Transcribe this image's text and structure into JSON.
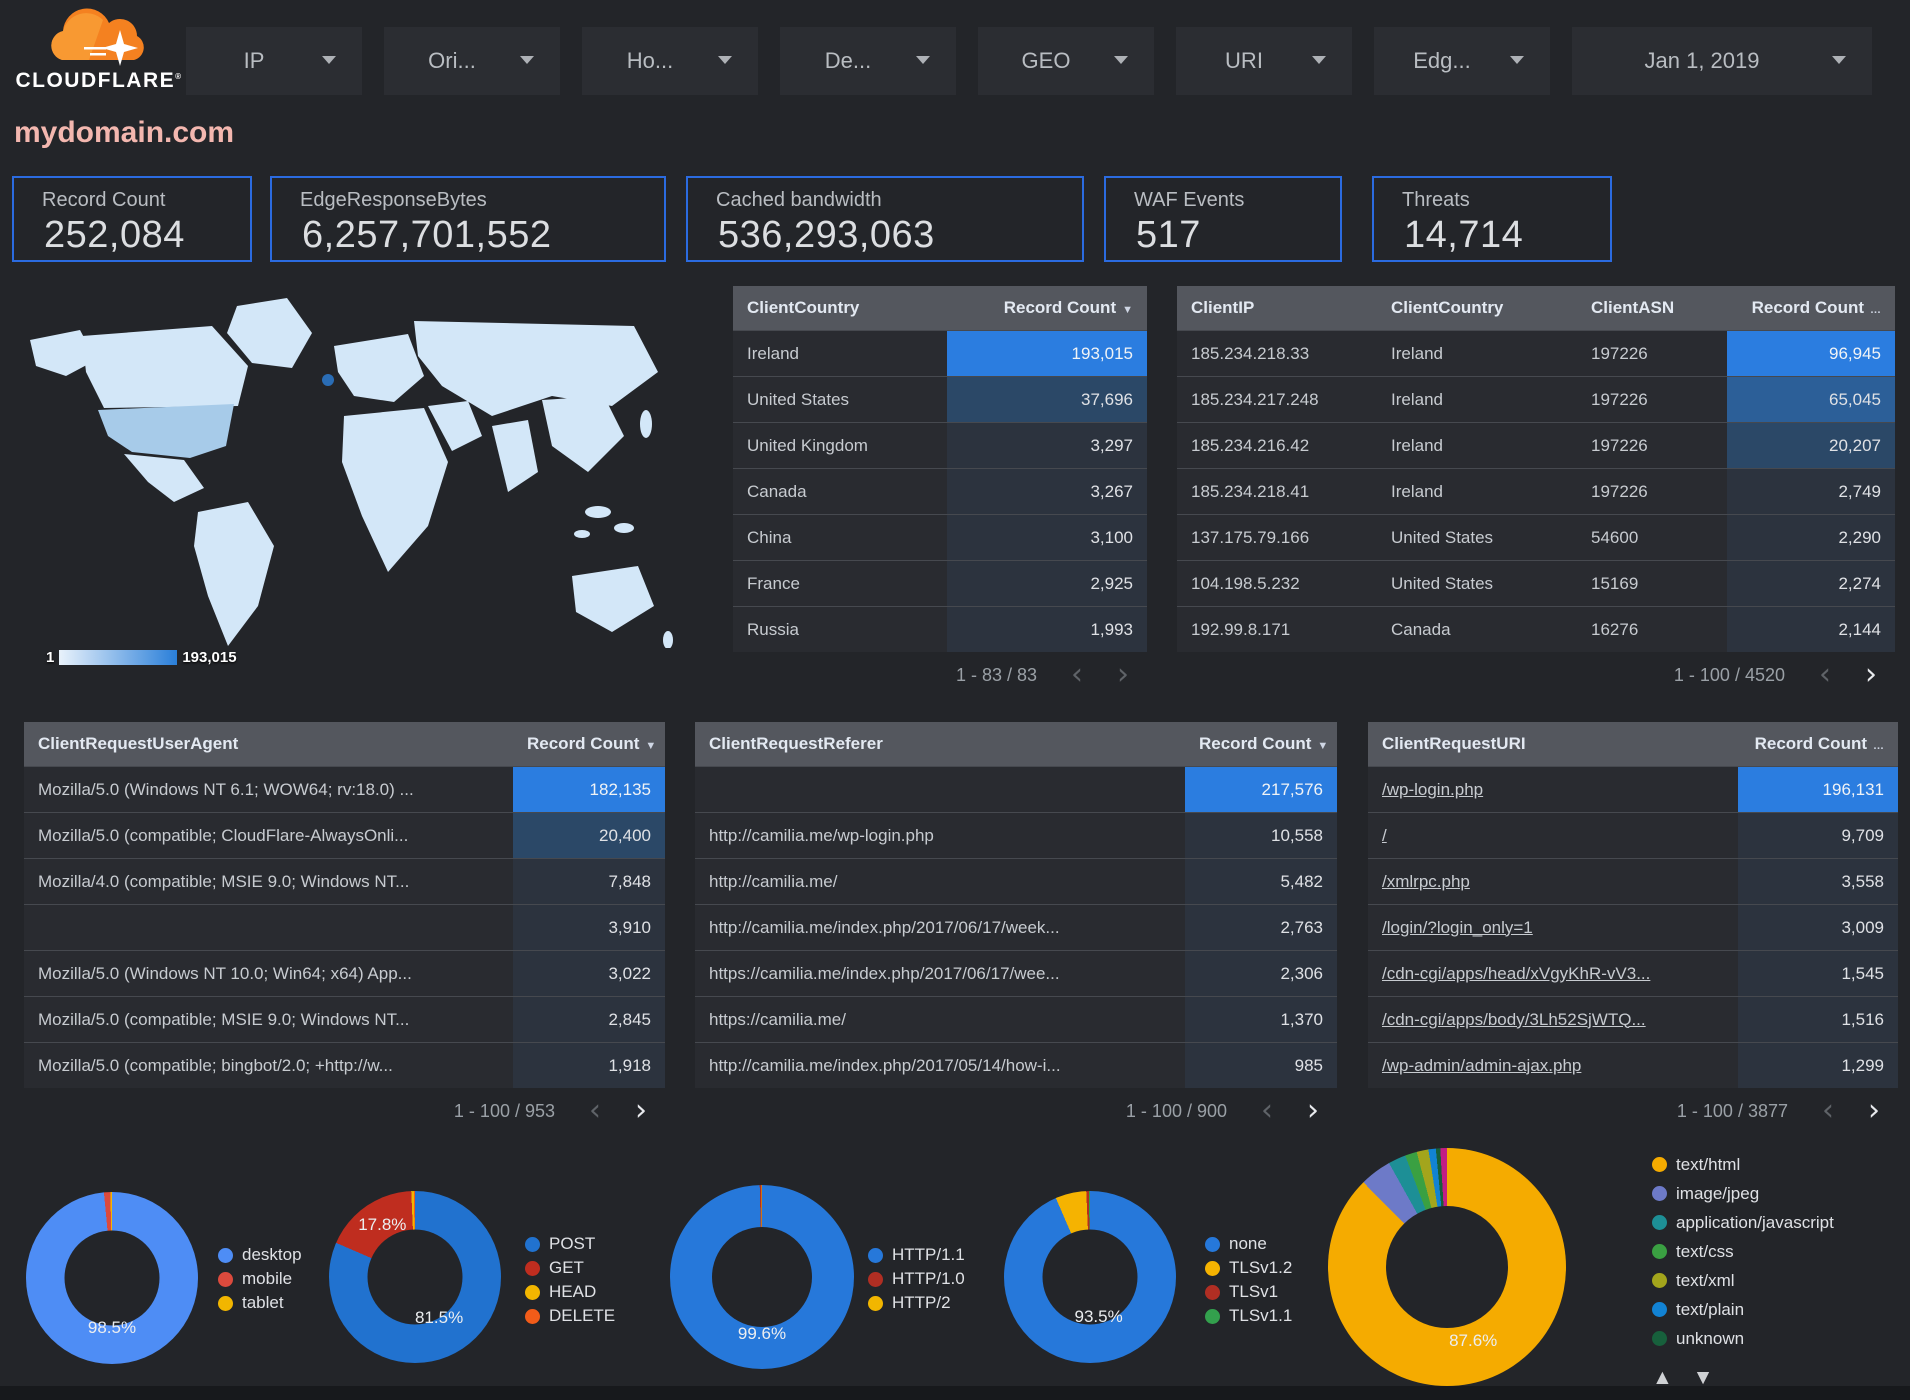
{
  "brand": {
    "name": "CLOUDFLARE",
    "reg_mark": "®",
    "cloud_color": "#f48120"
  },
  "page_title": "mydomain.com",
  "filters": [
    {
      "label": "IP"
    },
    {
      "label": "Ori..."
    },
    {
      "label": "Ho..."
    },
    {
      "label": "De..."
    },
    {
      "label": "GEO"
    },
    {
      "label": "URI"
    },
    {
      "label": "Edg..."
    },
    {
      "label": "Jan 1, 2019"
    }
  ],
  "scorecards": [
    {
      "label": "Record Count",
      "value": "252,084"
    },
    {
      "label": "EdgeResponseBytes",
      "value": "6,257,701,552"
    },
    {
      "label": "Cached bandwidth",
      "value": "536,293,063"
    },
    {
      "label": "WAF Events",
      "value": "517"
    },
    {
      "label": "Threats",
      "value": "14,714"
    }
  ],
  "map": {
    "legend_min": "1",
    "legend_max": "193,015",
    "land_color": "#d3e7f8",
    "mid_color": "#a7cbe9",
    "hot_color": "#2a6db5"
  },
  "tables": [
    {
      "id": "country",
      "columns": [
        "ClientCountry",
        "Record Count"
      ],
      "sort_icon": "▼",
      "widths": "1fr 200px",
      "count_col": 1,
      "max": 193015,
      "rows": [
        [
          "Ireland",
          "193,015"
        ],
        [
          "United States",
          "37,696"
        ],
        [
          "United Kingdom",
          "3,297"
        ],
        [
          "Canada",
          "3,267"
        ],
        [
          "China",
          "3,100"
        ],
        [
          "France",
          "2,925"
        ],
        [
          "Russia",
          "1,993"
        ]
      ],
      "pagination": {
        "range": "1 - 83 / 83",
        "prev_lit": false,
        "next_lit": false
      }
    },
    {
      "id": "client-ip",
      "columns": [
        "ClientIP",
        "ClientCountry",
        "ClientASN",
        "Record Count"
      ],
      "sort_icon": "…",
      "widths": "200px 200px 150px 1fr",
      "count_col": 3,
      "max": 96945,
      "rows": [
        [
          "185.234.218.33",
          "Ireland",
          "197226",
          "96,945"
        ],
        [
          "185.234.217.248",
          "Ireland",
          "197226",
          "65,045"
        ],
        [
          "185.234.216.42",
          "Ireland",
          "197226",
          "20,207"
        ],
        [
          "185.234.218.41",
          "Ireland",
          "197226",
          "2,749"
        ],
        [
          "137.175.79.166",
          "United States",
          "54600",
          "2,290"
        ],
        [
          "104.198.5.232",
          "United States",
          "15169",
          "2,274"
        ],
        [
          "192.99.8.171",
          "Canada",
          "16276",
          "2,144"
        ]
      ],
      "pagination": {
        "range": "1 - 100 / 4520",
        "prev_lit": false,
        "next_lit": true
      }
    },
    {
      "id": "user-agent",
      "columns": [
        "ClientRequestUserAgent",
        "Record Count"
      ],
      "sort_icon": "▼",
      "widths": "1fr 152px",
      "count_col": 1,
      "max": 182135,
      "rows": [
        [
          "Mozilla/5.0 (Windows NT 6.1; WOW64; rv:18.0) ...",
          "182,135"
        ],
        [
          "Mozilla/5.0 (compatible; CloudFlare-AlwaysOnli...",
          "20,400"
        ],
        [
          "Mozilla/4.0 (compatible; MSIE 9.0; Windows NT...",
          "7,848"
        ],
        [
          "",
          "3,910"
        ],
        [
          "Mozilla/5.0 (Windows NT 10.0; Win64; x64) App...",
          "3,022"
        ],
        [
          "Mozilla/5.0 (compatible; MSIE 9.0; Windows NT...",
          "2,845"
        ],
        [
          "Mozilla/5.0 (compatible; bingbot/2.0; +http://w...",
          "1,918"
        ]
      ],
      "pagination": {
        "range": "1 - 100 / 953",
        "prev_lit": false,
        "next_lit": true
      }
    },
    {
      "id": "referer",
      "columns": [
        "ClientRequestReferer",
        "Record Count"
      ],
      "sort_icon": "▼",
      "widths": "1fr 152px",
      "count_col": 1,
      "max": 217576,
      "rows": [
        [
          "",
          "217,576"
        ],
        [
          "http://camilia.me/wp-login.php",
          "10,558"
        ],
        [
          "http://camilia.me/",
          "5,482"
        ],
        [
          "http://camilia.me/index.php/2017/06/17/week...",
          "2,763"
        ],
        [
          "https://camilia.me/index.php/2017/06/17/wee...",
          "2,306"
        ],
        [
          "https://camilia.me/",
          "1,370"
        ],
        [
          "http://camilia.me/index.php/2017/05/14/how-i...",
          "985"
        ]
      ],
      "pagination": {
        "range": "1 - 100 / 900",
        "prev_lit": false,
        "next_lit": true
      }
    },
    {
      "id": "uri",
      "columns": [
        "ClientRequestURI",
        "Record Count"
      ],
      "sort_icon": "…",
      "widths": "1fr 160px",
      "count_col": 1,
      "max": 196131,
      "link_col": 0,
      "rows": [
        [
          "/wp-login.php",
          "196,131"
        ],
        [
          "/",
          "9,709"
        ],
        [
          "/xmlrpc.php",
          "3,558"
        ],
        [
          "/login/?login_only=1",
          "3,009"
        ],
        [
          "/cdn-cgi/apps/head/xVgyKhR-vV3...",
          "1,545"
        ],
        [
          "/cdn-cgi/apps/body/3Lh52SjWTQ...",
          "1,516"
        ],
        [
          "/wp-admin/admin-ajax.php",
          "1,299"
        ]
      ],
      "pagination": {
        "range": "1 - 100 / 3877",
        "prev_lit": false,
        "next_lit": true
      }
    }
  ],
  "chart_data": [
    {
      "type": "pie",
      "id": "device-type",
      "legend_position": "right",
      "series": [
        {
          "name": "desktop",
          "value": 98.5
        },
        {
          "name": "mobile",
          "value": 1.2
        },
        {
          "name": "tablet",
          "value": 0.3
        }
      ],
      "colors": [
        "#4e8df5",
        "#dc4a3d",
        "#f2b600"
      ],
      "labels": [
        {
          "text": "98.5%",
          "x": 50,
          "y": 79
        }
      ]
    },
    {
      "type": "pie",
      "id": "request-method",
      "legend_position": "right",
      "series": [
        {
          "name": "POST",
          "value": 81.5
        },
        {
          "name": "GET",
          "value": 17.8
        },
        {
          "name": "HEAD",
          "value": 0.5
        },
        {
          "name": "DELETE",
          "value": 0.2
        }
      ],
      "colors": [
        "#2172cf",
        "#bf2d1f",
        "#f2b600",
        "#f25c19"
      ],
      "labels": [
        {
          "text": "17.8%",
          "x": 31,
          "y": 20
        },
        {
          "text": "81.5%",
          "x": 64,
          "y": 74
        }
      ]
    },
    {
      "type": "pie",
      "id": "http-version",
      "legend_position": "right",
      "series": [
        {
          "name": "HTTP/1.1",
          "value": 99.6
        },
        {
          "name": "HTTP/1.0",
          "value": 0.3
        },
        {
          "name": "HTTP/2",
          "value": 0.1
        }
      ],
      "colors": [
        "#2678da",
        "#b02e23",
        "#f2b600"
      ],
      "labels": [
        {
          "text": "99.6%",
          "x": 50,
          "y": 81
        }
      ]
    },
    {
      "type": "pie",
      "id": "tls-version",
      "legend_position": "right",
      "series": [
        {
          "name": "none",
          "value": 93.5
        },
        {
          "name": "TLSv1.2",
          "value": 5.8
        },
        {
          "name": "TLSv1",
          "value": 0.5
        },
        {
          "name": "TLSv1.1",
          "value": 0.2
        }
      ],
      "colors": [
        "#2678da",
        "#f5b301",
        "#b02e23",
        "#33a04d"
      ],
      "labels": [
        {
          "text": "93.5%",
          "x": 55,
          "y": 73
        }
      ]
    },
    {
      "type": "pie",
      "id": "content-type",
      "legend_position": "right",
      "legend_pager": "▲ ▼",
      "series": [
        {
          "name": "text/html",
          "value": 87.6
        },
        {
          "name": "image/jpeg",
          "value": 4.3
        },
        {
          "name": "application/javascript",
          "value": 2.4
        },
        {
          "name": "text/css",
          "value": 1.6
        },
        {
          "name": "text/xml",
          "value": 1.6
        },
        {
          "name": "text/plain",
          "value": 1.0
        },
        {
          "name": "unknown",
          "value": 0.6
        },
        {
          "name": "",
          "value": 0.9
        }
      ],
      "colors": [
        "#f5ab00",
        "#6d7ac8",
        "#1d8f96",
        "#3aa042",
        "#a3a51c",
        "#1283d4",
        "#17603c",
        "#c21d84"
      ],
      "labels": [
        {
          "text": "87.6%",
          "x": 61,
          "y": 81
        }
      ]
    }
  ],
  "heat_colors": {
    "hi": "#2b7de0",
    "mid": "#2c5f98",
    "low": "#2b4867",
    "tint": "#2c333e"
  }
}
